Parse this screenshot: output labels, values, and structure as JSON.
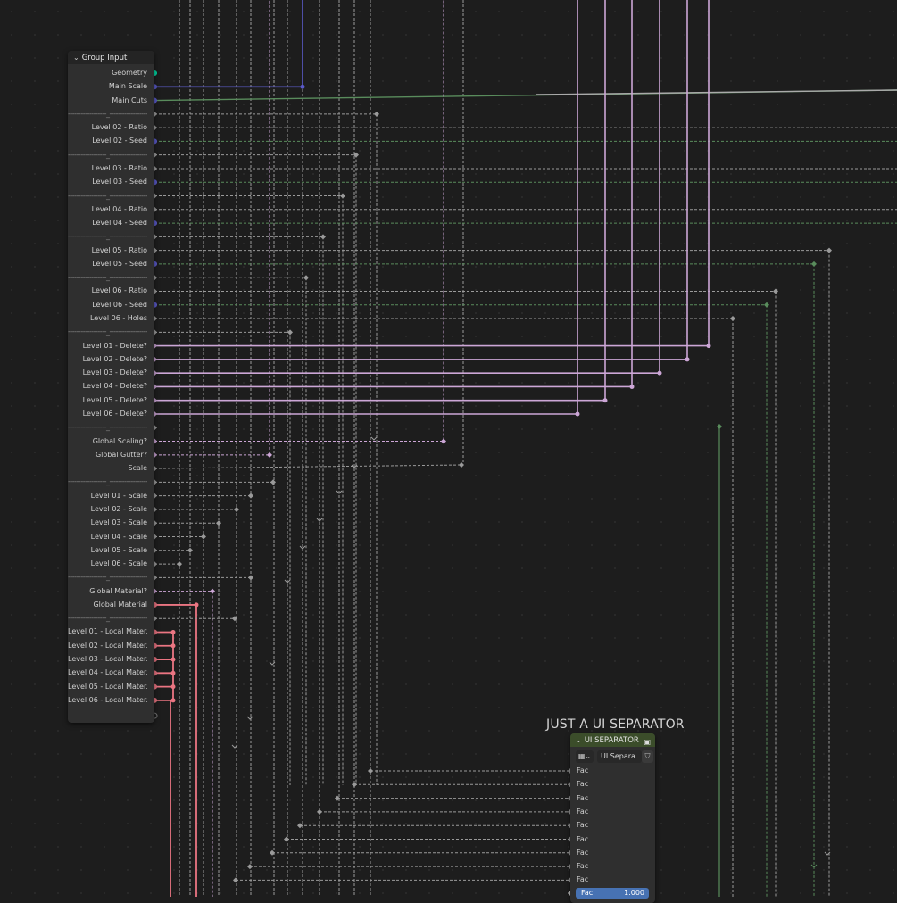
{
  "group_input": {
    "title": "Group Input",
    "sockets": [
      {
        "label": "Geometry",
        "type": "geometry"
      },
      {
        "label": "Main Scale",
        "type": "int"
      },
      {
        "label": "Main Cuts",
        "type": "int"
      },
      {
        "label": "------------------_------------------",
        "type": "sep"
      },
      {
        "label": "Level 02 - Ratio",
        "type": "float"
      },
      {
        "label": "Level 02 - Seed",
        "type": "int"
      },
      {
        "label": "------------------_------------------",
        "type": "sep"
      },
      {
        "label": "Level 03 - Ratio",
        "type": "float"
      },
      {
        "label": "Level 03 - Seed",
        "type": "int"
      },
      {
        "label": "------------------_------------------",
        "type": "sep"
      },
      {
        "label": "Level 04 - Ratio",
        "type": "float"
      },
      {
        "label": "Level 04 - Seed",
        "type": "int"
      },
      {
        "label": "------------------_------------------",
        "type": "sep"
      },
      {
        "label": "Level 05 - Ratio",
        "type": "float"
      },
      {
        "label": "Level 05 - Seed",
        "type": "int"
      },
      {
        "label": "------------------_------------------",
        "type": "sep"
      },
      {
        "label": "Level 06 - Ratio",
        "type": "float"
      },
      {
        "label": "Level 06 - Seed",
        "type": "int"
      },
      {
        "label": "Level 06 - Holes",
        "type": "float"
      },
      {
        "label": "------------------_------------------",
        "type": "sep"
      },
      {
        "label": "Level 01 - Delete?",
        "type": "bool"
      },
      {
        "label": "Level 02 - Delete?",
        "type": "bool"
      },
      {
        "label": "Level 03 - Delete?",
        "type": "bool"
      },
      {
        "label": "Level 04 - Delete?",
        "type": "bool"
      },
      {
        "label": "Level 05 - Delete?",
        "type": "bool"
      },
      {
        "label": "Level 06 - Delete?",
        "type": "bool"
      },
      {
        "label": "------------------_------------------",
        "type": "sep"
      },
      {
        "label": "Global Scaling?",
        "type": "bool"
      },
      {
        "label": "Global Gutter?",
        "type": "bool"
      },
      {
        "label": "Scale",
        "type": "float"
      },
      {
        "label": "------------------_------------------",
        "type": "sep"
      },
      {
        "label": "Level 01 - Scale",
        "type": "float"
      },
      {
        "label": "Level 02 - Scale",
        "type": "float"
      },
      {
        "label": "Level 03 - Scale",
        "type": "float"
      },
      {
        "label": "Level 04 - Scale",
        "type": "float"
      },
      {
        "label": "Level 05 - Scale",
        "type": "float"
      },
      {
        "label": "Level 06 - Scale",
        "type": "float"
      },
      {
        "label": "------------------_------------------",
        "type": "sep"
      },
      {
        "label": "Global Material?",
        "type": "bool"
      },
      {
        "label": "Global Material",
        "type": "material"
      },
      {
        "label": "------------------_------------------",
        "type": "sep"
      },
      {
        "label": "Level 01 - Local Mater...",
        "type": "material"
      },
      {
        "label": "Level 02 - Local Mater...",
        "type": "material"
      },
      {
        "label": "Level 03 - Local Mater...",
        "type": "material"
      },
      {
        "label": "Level 04 - Local Mater...",
        "type": "material"
      },
      {
        "label": "Level 05 - Local Mater...",
        "type": "material"
      },
      {
        "label": "Level 06 - Local Mater...",
        "type": "material"
      },
      {
        "label": "",
        "type": "empty"
      }
    ]
  },
  "frame": {
    "label": "JUST A UI SEPARATOR"
  },
  "ui_separator": {
    "title": "UI SEPARATOR",
    "tree_icon": "node-tree-icon",
    "tree_name": "UI Separa...",
    "fac_inputs": [
      "Fac",
      "Fac",
      "Fac",
      "Fac",
      "Fac",
      "Fac",
      "Fac",
      "Fac",
      "Fac"
    ],
    "slider": {
      "label": "Fac",
      "value": "1.000"
    }
  },
  "colors": {
    "background": "#1d1d1d",
    "node_body": "#2f2f2f",
    "geometry": "#00d6a3",
    "int": "#5a5ac8",
    "float": "#a1a1a1",
    "bool": "#cca6d6",
    "material": "#eb7582",
    "int_wire": "#598c5c",
    "frame_header": "#3b4d2a",
    "slider": "#4772b3"
  }
}
